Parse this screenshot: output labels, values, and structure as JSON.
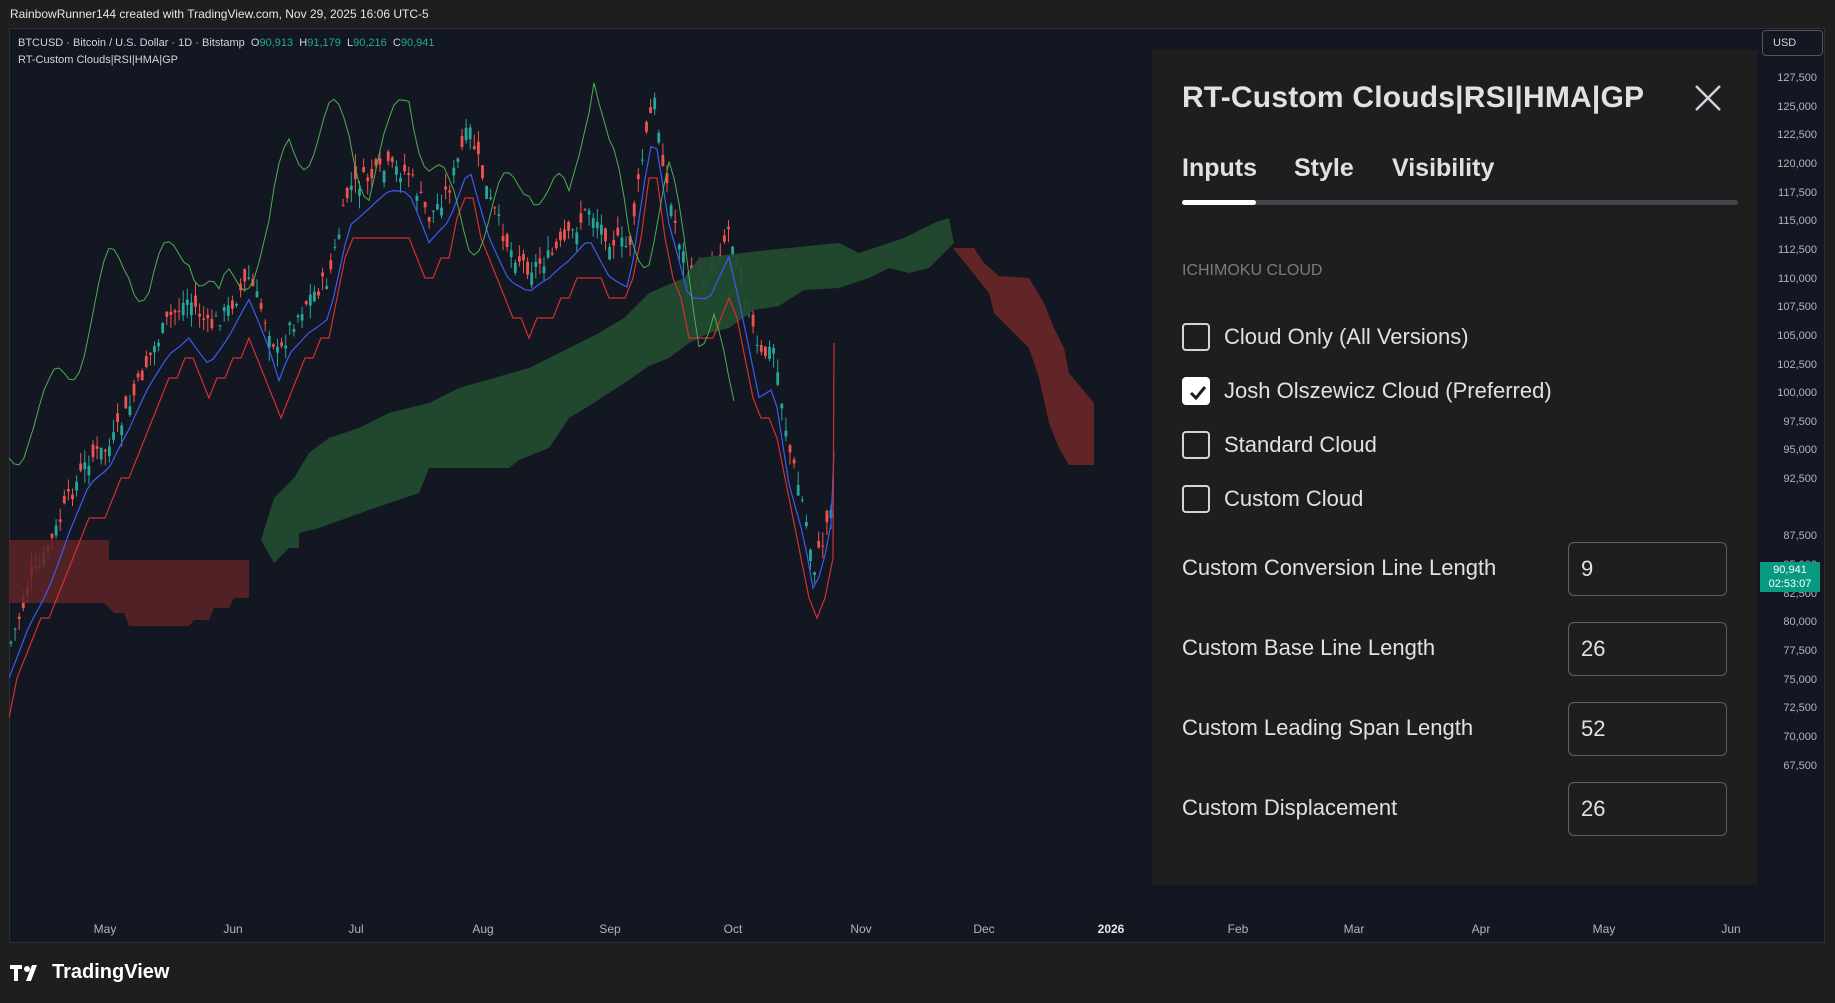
{
  "header": {
    "credit": "RainbowRunner144 created with TradingView.com, Nov 29, 2025 16:06 UTC-5"
  },
  "legend": {
    "symbol": "BTCUSD · Bitcoin / U.S. Dollar · 1D · Bitstamp",
    "open_k": "O",
    "open": "90,913",
    "high_k": "H",
    "high": "91,179",
    "low_k": "L",
    "low": "90,216",
    "close_k": "C",
    "close": "90,941",
    "indicator": "RT-Custom Clouds|RSI|HMA|GP"
  },
  "price_axis": {
    "currency": "USD",
    "ticks": [
      "127,500",
      "125,000",
      "122,500",
      "120,000",
      "117,500",
      "115,000",
      "112,500",
      "110,000",
      "107,500",
      "105,000",
      "102,500",
      "100,000",
      "97,500",
      "95,000",
      "92,500",
      "87,500",
      "85,000",
      "82,500",
      "80,000",
      "77,500",
      "75,000",
      "72,500",
      "70,000",
      "67,500"
    ],
    "last_price": "90,941",
    "countdown": "02:53:07"
  },
  "time_axis": {
    "ticks": [
      "May",
      "Jun",
      "Jul",
      "Aug",
      "Sep",
      "Oct",
      "Nov",
      "Dec",
      "2026",
      "Feb",
      "Mar",
      "Apr",
      "May",
      "Jun"
    ]
  },
  "brand": "TradingView",
  "panel": {
    "title": "RT-Custom Clouds|RSI|HMA|GP",
    "tabs": [
      "Inputs",
      "Style",
      "Visibility"
    ],
    "active_tab": "Inputs",
    "section": "ICHIMOKU CLOUD",
    "checkboxes": [
      {
        "label": "Cloud Only (All Versions)",
        "checked": false
      },
      {
        "label": "Josh Olszewicz Cloud (Preferred)",
        "checked": true
      },
      {
        "label": "Standard Cloud",
        "checked": false
      },
      {
        "label": "Custom Cloud",
        "checked": false
      }
    ],
    "fields": [
      {
        "label": "Custom Conversion Line Length",
        "value": "9"
      },
      {
        "label": "Custom Base Line Length",
        "value": "26"
      },
      {
        "label": "Custom Leading Span Length",
        "value": "52"
      },
      {
        "label": "Custom Displacement",
        "value": "26"
      }
    ]
  },
  "colors": {
    "background": "#131722",
    "up": "#26a69a",
    "down": "#ef5350",
    "bull_cloud": "#234a30",
    "bear_cloud": "#5e2326",
    "last_price": "#089981"
  }
}
